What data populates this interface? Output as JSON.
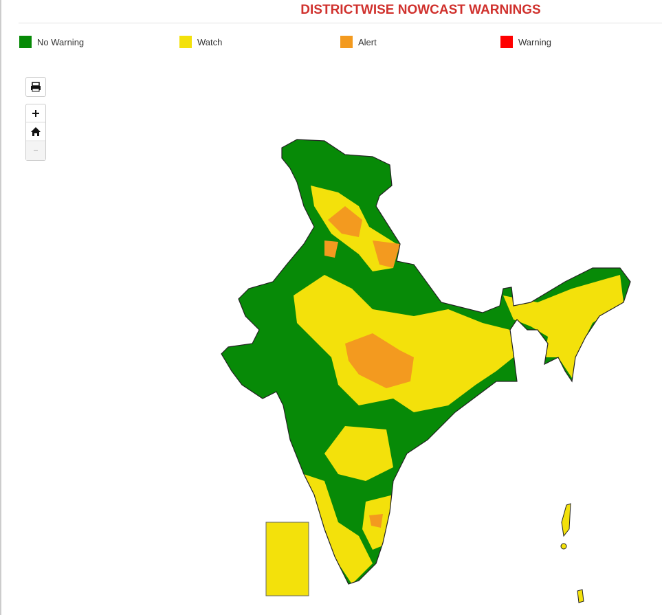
{
  "header": {
    "title": "DISTRICTWISE NOWCAST WARNINGS"
  },
  "legend": [
    {
      "label": "No Warning",
      "color": "#078a07"
    },
    {
      "label": "Watch",
      "color": "#f3e10b"
    },
    {
      "label": "Alert",
      "color": "#f39a1f"
    },
    {
      "label": "Warning",
      "color": "#ff0000"
    }
  ]
}
